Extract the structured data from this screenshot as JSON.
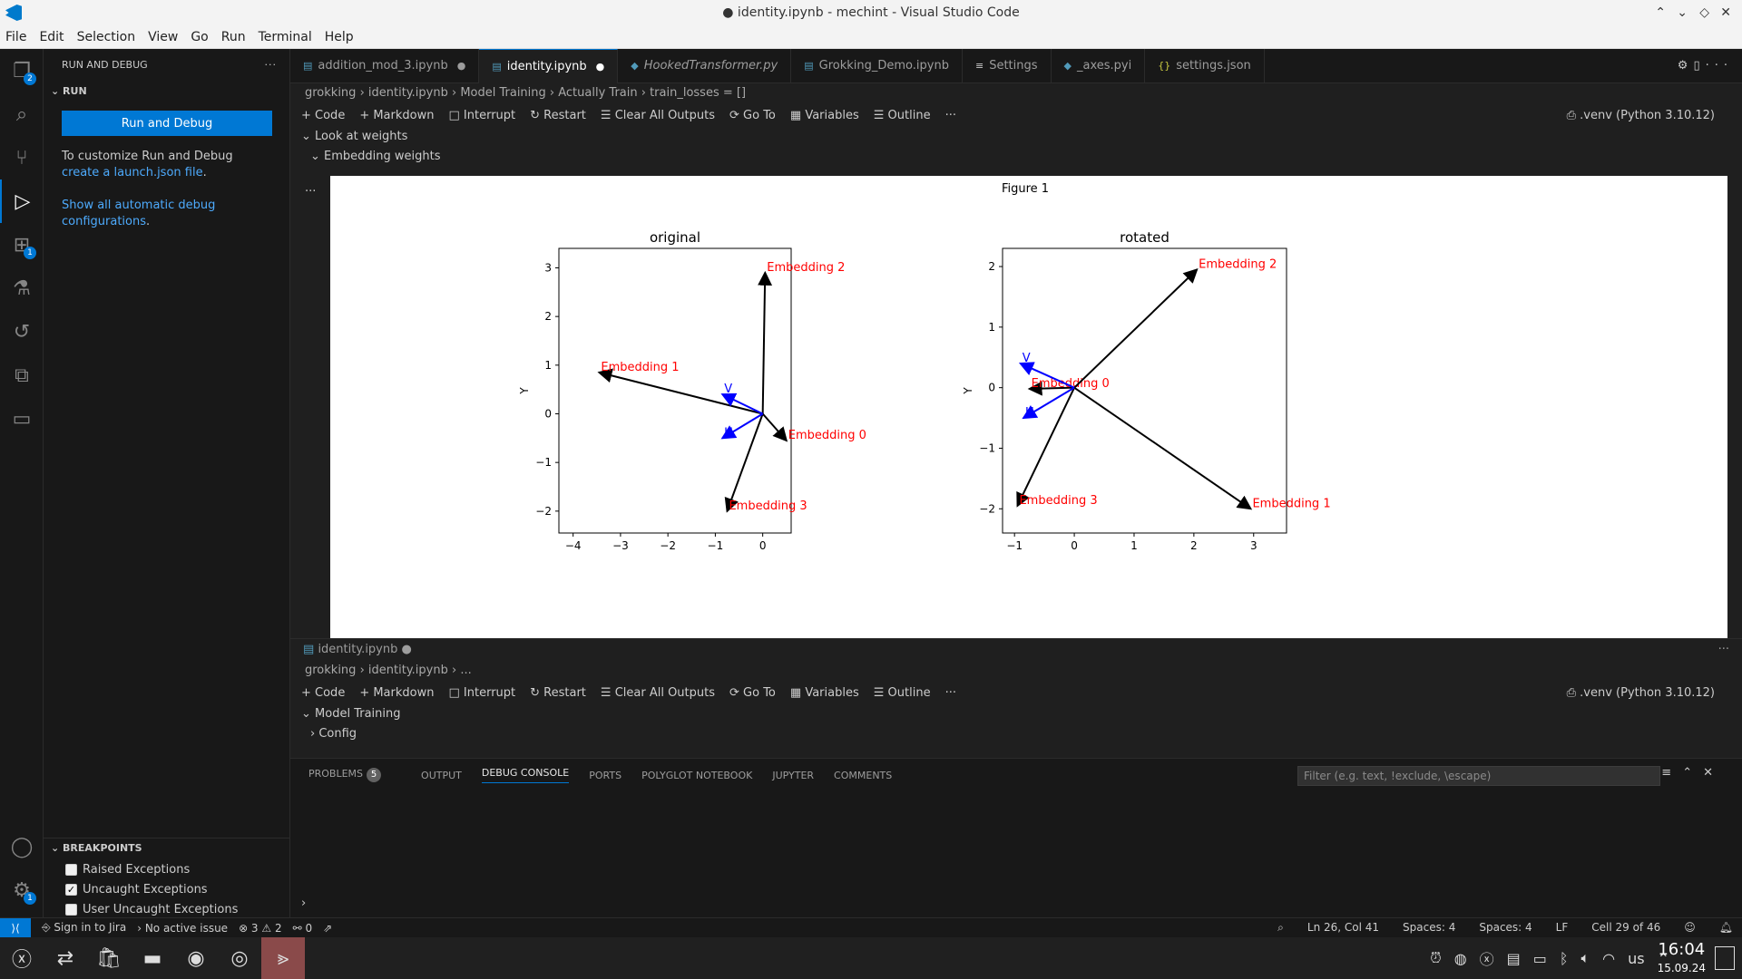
{
  "window": {
    "title": "● identity.ipynb - mechint - Visual Studio Code"
  },
  "menu": [
    "File",
    "Edit",
    "Selection",
    "View",
    "Go",
    "Run",
    "Terminal",
    "Help"
  ],
  "activity": {
    "explorer_badge": "2",
    "extensions_badge": "1",
    "settings_badge": "1"
  },
  "sidebar": {
    "header": "RUN AND DEBUG",
    "section": "RUN",
    "run_button": "Run and Debug",
    "customize_text": "To customize Run and Debug",
    "create_link": "create a launch.json file",
    "show_link": "Show all automatic debug configurations",
    "breakpoints_header": "BREAKPOINTS",
    "breakpoints": [
      {
        "label": "Raised Exceptions",
        "checked": false
      },
      {
        "label": "Uncaught Exceptions",
        "checked": true
      },
      {
        "label": "User Uncaught Exceptions",
        "checked": false
      }
    ]
  },
  "tabs": [
    {
      "label": "addition_mod_3.ipynb",
      "dirty": true,
      "active": false
    },
    {
      "label": "identity.ipynb",
      "dirty": true,
      "active": true
    },
    {
      "label": "HookedTransformer.py",
      "dirty": false,
      "active": false
    },
    {
      "label": "Grokking_Demo.ipynb",
      "dirty": false,
      "active": false
    },
    {
      "label": "Settings",
      "dirty": false,
      "active": false
    },
    {
      "label": "_axes.pyi",
      "dirty": false,
      "active": false
    },
    {
      "label": "settings.json",
      "dirty": false,
      "active": false
    }
  ],
  "breadcrumb": {
    "folder": "grokking",
    "file": "identity.ipynb",
    "s1": "Model Training",
    "s2": "Actually Train",
    "s3": "train_losses = []"
  },
  "toolbar": {
    "code": "Code",
    "markdown": "Markdown",
    "interrupt": "Interrupt",
    "restart": "Restart",
    "clear": "Clear All Outputs",
    "goto": "Go To",
    "variables": "Variables",
    "outline": "Outline",
    "kernel": ".venv (Python 3.10.12)"
  },
  "sections": {
    "look": "Look at weights",
    "embedding": "Embedding weights"
  },
  "figure": {
    "title": "Figure 1"
  },
  "chart_data": [
    {
      "type": "quiver",
      "title": "original",
      "ylabel": "Y",
      "xlim": [
        -4.3,
        0.6
      ],
      "ylim": [
        -2.45,
        3.4
      ],
      "xticks": [
        "−4",
        "−3",
        "−2",
        "−1",
        "0"
      ],
      "yticks": [
        "−2",
        "−1",
        "0",
        "1",
        "2",
        "3"
      ],
      "origin": [
        0,
        0
      ],
      "vectors": [
        {
          "label": "Embedding 0",
          "x": 0.5,
          "y": -0.55,
          "color": "#000"
        },
        {
          "label": "Embedding 1",
          "x": -3.45,
          "y": 0.85,
          "color": "#000"
        },
        {
          "label": "Embedding 2",
          "x": 0.05,
          "y": 2.9,
          "color": "#000"
        },
        {
          "label": "Embedding 3",
          "x": -0.75,
          "y": -2.0,
          "color": "#000"
        },
        {
          "label": "V",
          "x": -0.85,
          "y": 0.4,
          "color": "#0000ff"
        },
        {
          "label": "U",
          "x": -0.85,
          "y": -0.5,
          "color": "#0000ff"
        }
      ]
    },
    {
      "type": "quiver",
      "title": "rotated",
      "ylabel": "Y",
      "xlim": [
        -1.2,
        3.55
      ],
      "ylim": [
        -2.4,
        2.3
      ],
      "xticks": [
        "−1",
        "0",
        "1",
        "2",
        "3"
      ],
      "yticks": [
        "−2",
        "−1",
        "0",
        "1",
        "2"
      ],
      "origin": [
        0,
        0
      ],
      "vectors": [
        {
          "label": "Embedding 0",
          "x": -0.75,
          "y": -0.02,
          "color": "#000"
        },
        {
          "label": "Embedding 1",
          "x": 2.95,
          "y": -2.0,
          "color": "#000"
        },
        {
          "label": "Embedding 2",
          "x": 2.05,
          "y": 1.95,
          "color": "#000"
        },
        {
          "label": "Embedding 3",
          "x": -0.95,
          "y": -1.95,
          "color": "#000"
        },
        {
          "label": "V",
          "x": -0.9,
          "y": 0.4,
          "color": "#0000ff"
        },
        {
          "label": "U",
          "x": -0.85,
          "y": -0.5,
          "color": "#0000ff"
        }
      ]
    }
  ],
  "editor2": {
    "tab": "identity.ipynb",
    "crumb_folder": "grokking",
    "crumb_file": "identity.ipynb",
    "crumb_more": "...",
    "section": "Model Training",
    "sub": "Config"
  },
  "panel": {
    "tabs": [
      "PROBLEMS",
      "OUTPUT",
      "DEBUG CONSOLE",
      "PORTS",
      "POLYGLOT NOTEBOOK",
      "JUPYTER",
      "COMMENTS"
    ],
    "problems_count": "5",
    "filter_placeholder": "Filter (e.g. text, !exclude, \\escape)"
  },
  "status": {
    "jira": "Sign in to Jira",
    "issue": "No active issue",
    "errors": "⊗ 3 ⚠ 2",
    "ports": "0",
    "position": "Ln 26, Col 41",
    "spaces1": "Spaces: 4",
    "spaces2": "Spaces: 4",
    "eol": "LF",
    "cell": "Cell 29 of 46"
  },
  "clock": {
    "time": "16:04",
    "date": "15.09.24"
  },
  "tray": {
    "lang": "us"
  }
}
